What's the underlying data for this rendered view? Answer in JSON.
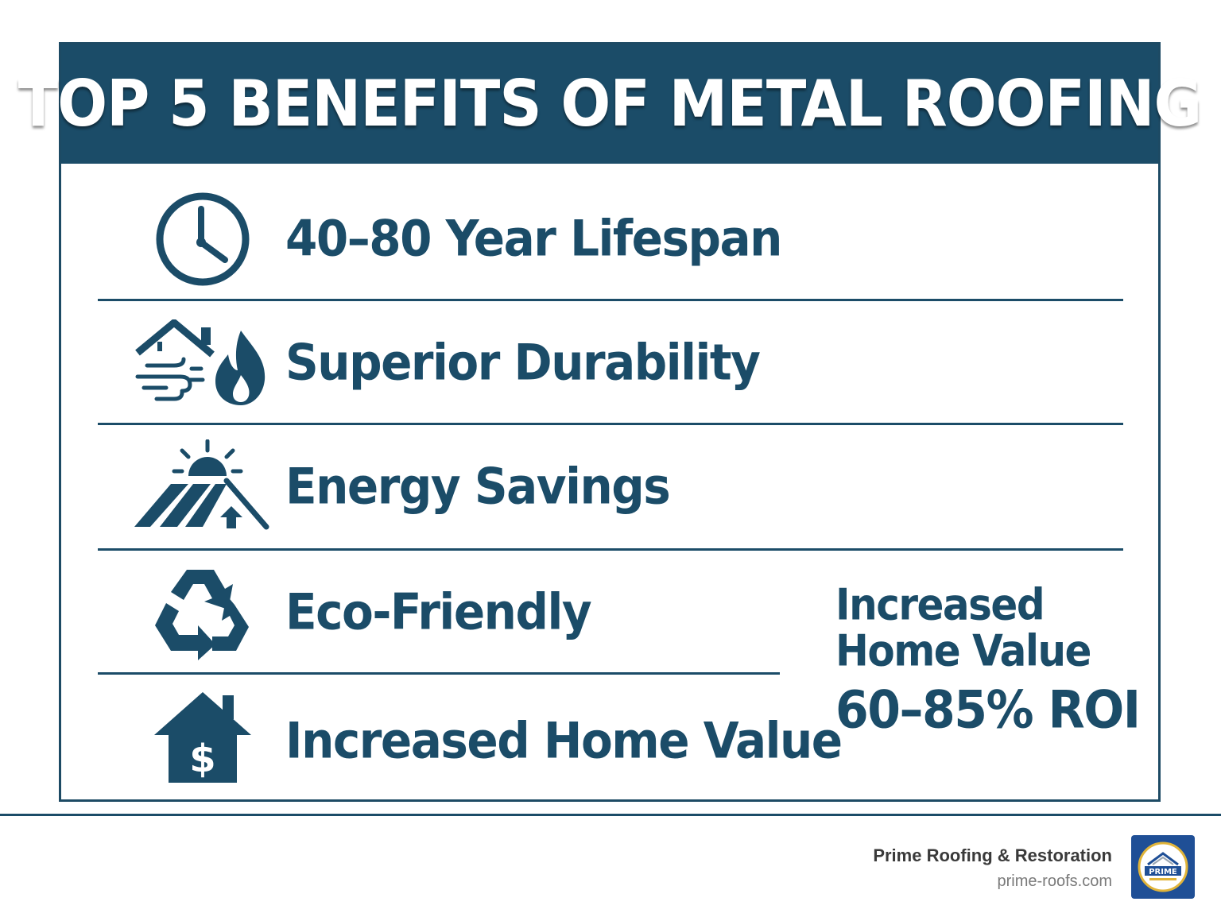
{
  "title": "TOP 5 BENEFITS OF METAL ROOFING",
  "benefits": [
    {
      "label": "40–80 Year Lifespan",
      "icon": "clock-icon"
    },
    {
      "label": "Superior Durability",
      "icon": "wind-fire-house-icon"
    },
    {
      "label": "Energy Savings",
      "icon": "sun-roof-icon"
    },
    {
      "label": "Eco-Friendly",
      "icon": "recycle-icon"
    },
    {
      "label": "Increased Home Value",
      "icon": "house-dollar-icon"
    }
  ],
  "callout": {
    "line1": "Increased",
    "line2": "Home Value",
    "roi": "60–85% ROI"
  },
  "footer": {
    "company": "Prime Roofing & Restoration",
    "website": "prime-roofs.com",
    "logo_text": "PRIME"
  },
  "colors": {
    "primary": "#1b4c68",
    "logo_bg": "#1f4f96",
    "logo_ring": "#e0b43a"
  }
}
